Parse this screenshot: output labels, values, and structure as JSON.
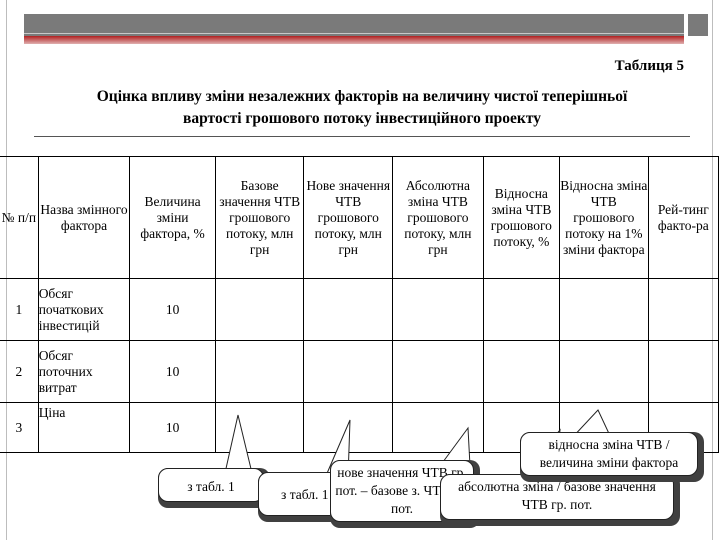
{
  "table_label": "Таблиця 5",
  "title_line1": "Оцінка впливу зміни незалежних факторів на величину чистої теперішньої",
  "title_line2": "вартості грошового потоку інвестиційного проекту",
  "headers": {
    "num": "№ п/п",
    "name": "Назва змінного фактора",
    "change": "Величина зміни фактора, %",
    "base": "Базове значення ЧТВ грошового потоку, млн грн",
    "new": "Нове значення ЧТВ грошового потоку, млн грн",
    "abs": "Абсолютна зміна ЧТВ грошового потоку, млн грн",
    "rel": "Відносна зміна ЧТВ грошового потоку, %",
    "rel1": "Відносна зміна ЧТВ грошового потоку на 1% зміни фактора",
    "rank": "Рей-тинг факто-ра"
  },
  "rows": [
    {
      "num": "1",
      "name": "Обсяг початкових інвестицій",
      "change": "10"
    },
    {
      "num": "2",
      "name": "Обсяг поточних витрат",
      "change": "10"
    },
    {
      "num": "3",
      "name": "Ціна",
      "change": "10"
    }
  ],
  "callouts": {
    "c1": "з табл. 1",
    "c2": "з табл. 1",
    "c3": "нове значення ЧТВ гр. пот. – базове з. ЧТВ гр. пот.",
    "c4": "абсолютна зміна / базове значення ЧТВ гр. пот.",
    "c5": "відносна зміна ЧТВ / величина зміни фактора"
  }
}
